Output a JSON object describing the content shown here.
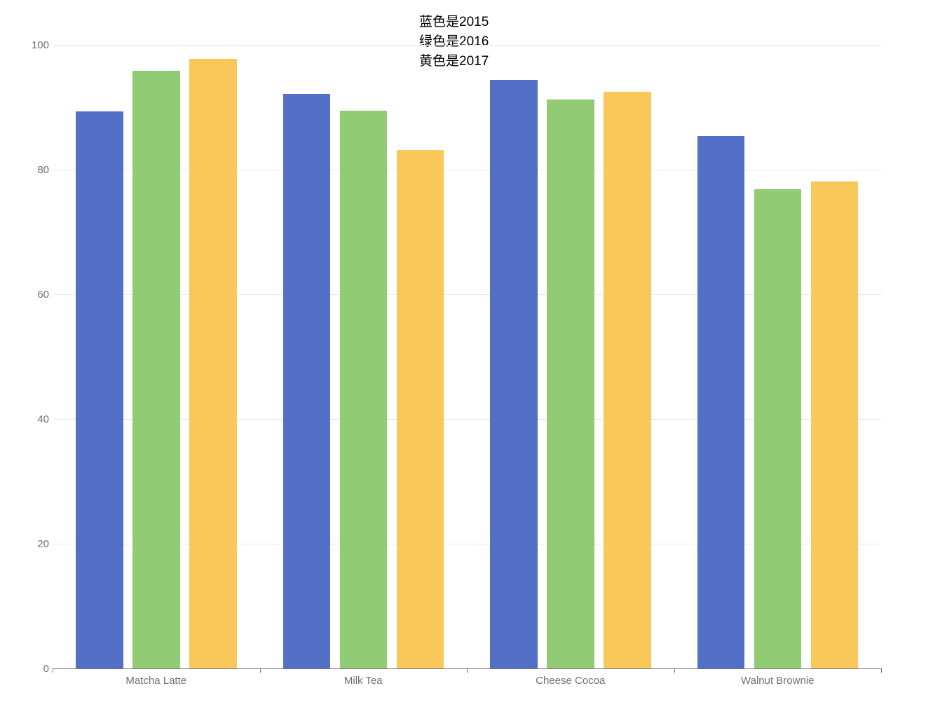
{
  "title": {
    "lines": [
      "蓝色是2015",
      "绿色是2016",
      "黄色是2017"
    ]
  },
  "colors": {
    "grid_line": "#E0E6F1",
    "axis_line": "#6E7079",
    "axis_label": "#6E7079",
    "title_text": "#000000",
    "background": "#FFFFFF"
  },
  "chart_data": {
    "type": "bar",
    "title": "蓝色是2015 / 绿色是2016 / 黄色是2017",
    "categories": [
      "Matcha Latte",
      "Milk Tea",
      "Cheese Cocoa",
      "Walnut Brownie"
    ],
    "series": [
      {
        "name": "2015",
        "color": "#5470C6",
        "values": [
          89.3,
          92.1,
          94.4,
          85.4
        ]
      },
      {
        "name": "2016",
        "color": "#91CC75",
        "values": [
          95.8,
          89.4,
          91.2,
          76.9
        ]
      },
      {
        "name": "2017",
        "color": "#FAC858",
        "values": [
          97.7,
          83.1,
          92.5,
          78.1
        ]
      }
    ],
    "xlabel": "",
    "ylabel": "",
    "ylim": [
      0,
      100
    ],
    "yticks": [
      0,
      20,
      40,
      60,
      80,
      100
    ],
    "grid": true,
    "legend_position": "none"
  }
}
